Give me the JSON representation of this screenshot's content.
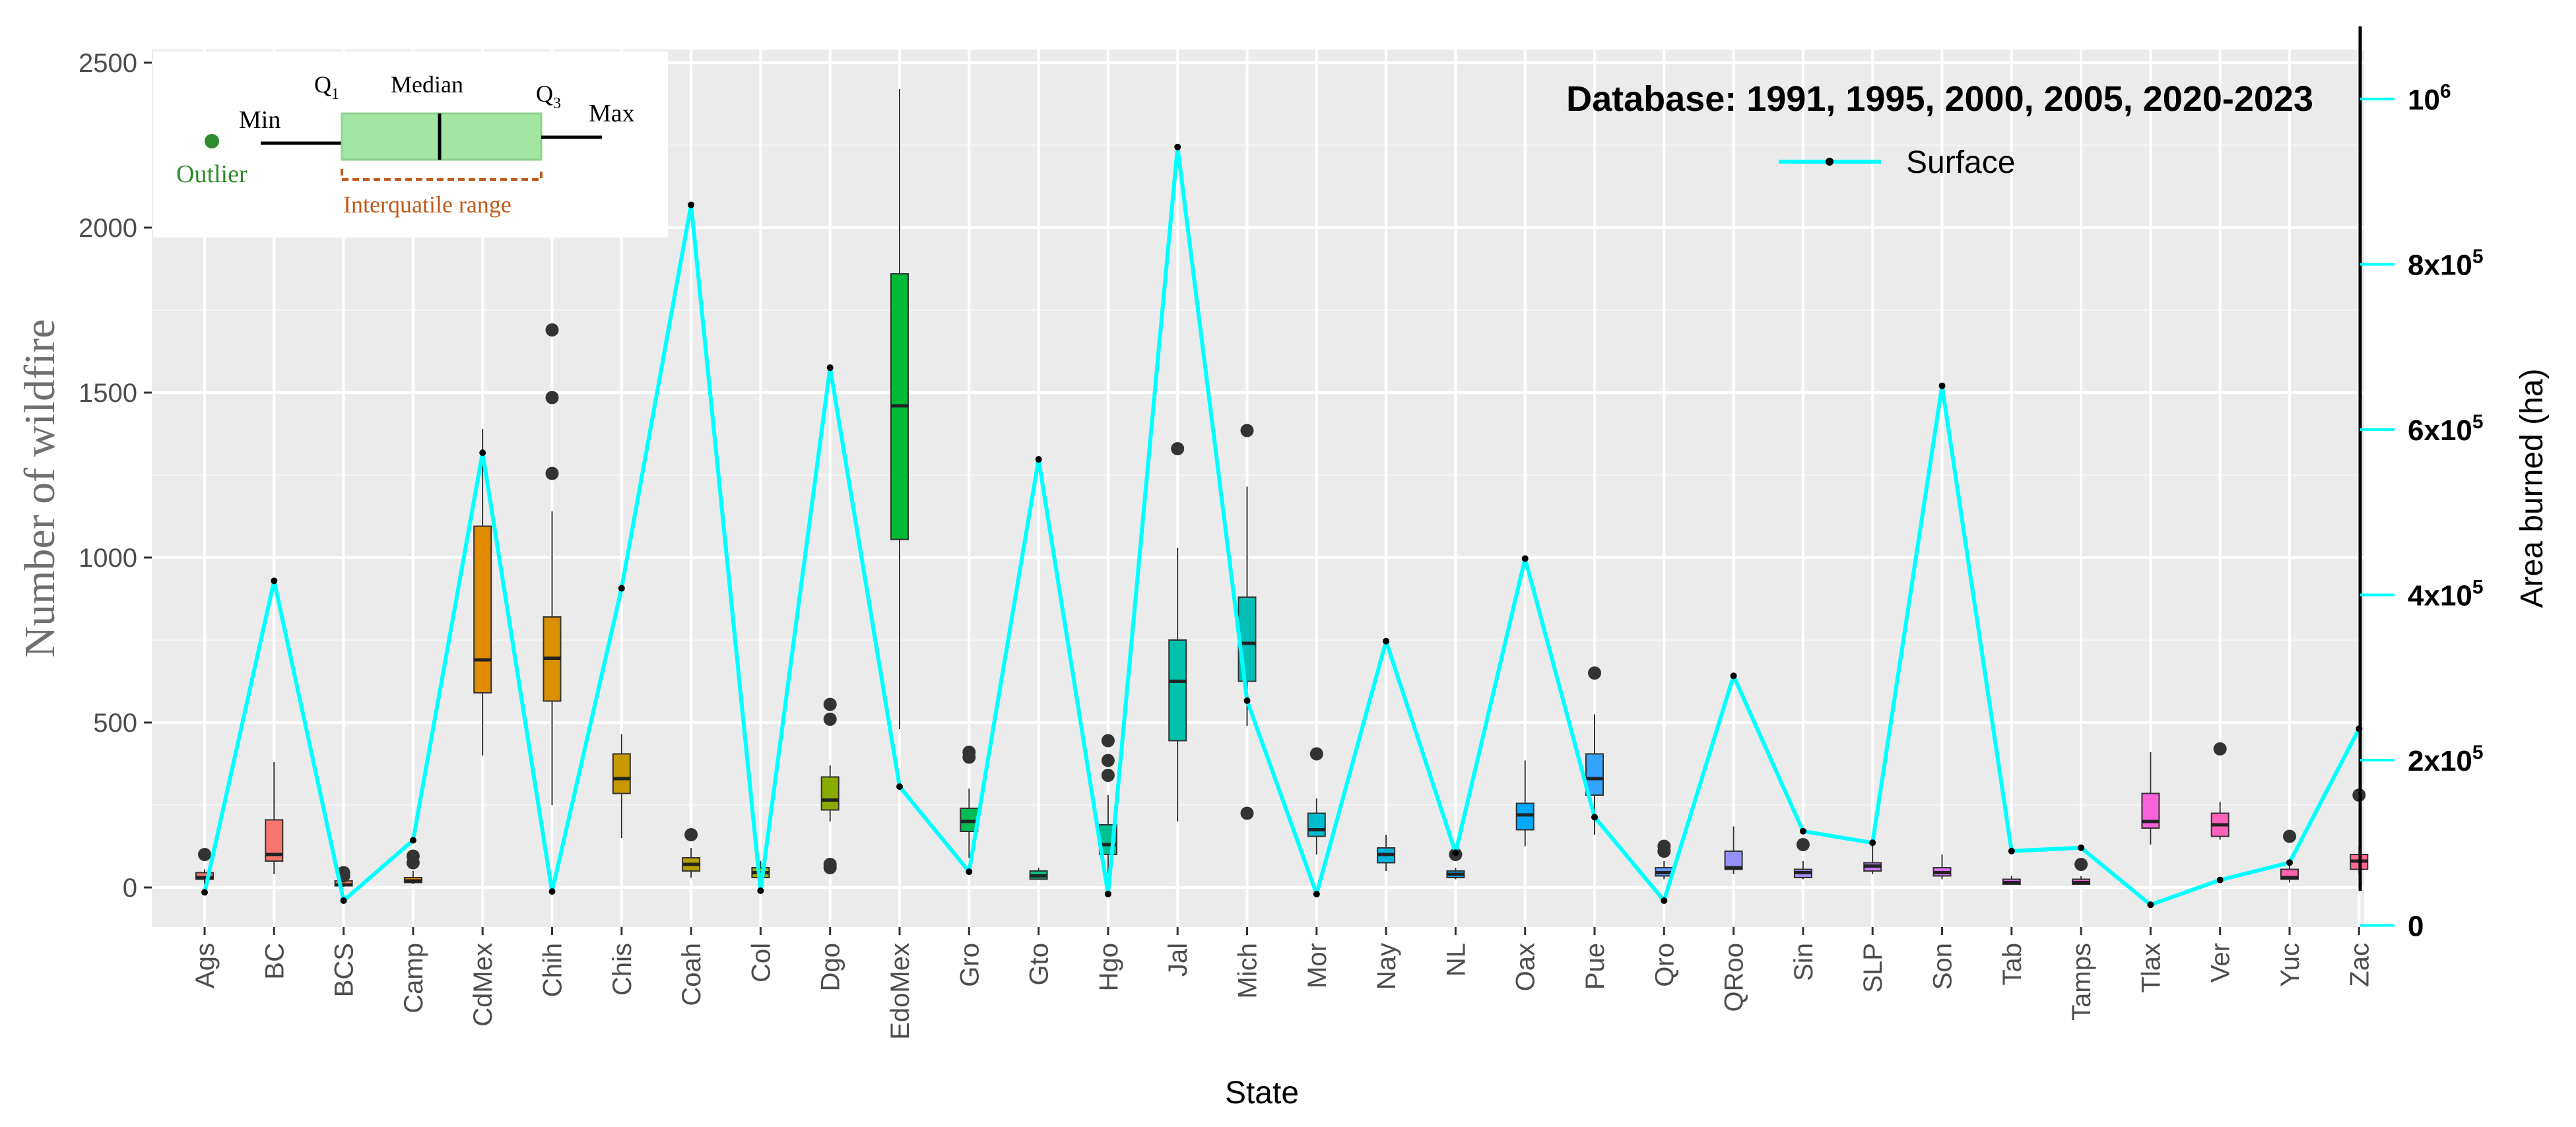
{
  "chart_data": {
    "type": "box",
    "title": "Database: 1991, 1995, 2000, 2005, 2020-2023",
    "xlabel": "State",
    "ylabel_left": "Number of wildfire",
    "ylabel_right": "Area burned (ha)",
    "ylim_left": [
      -120,
      2540
    ],
    "ylim_right": [
      -2000,
      1060000
    ],
    "yticks_left": [
      {
        "value": 0,
        "label": "0"
      },
      {
        "value": 500,
        "label": "500"
      },
      {
        "value": 1000,
        "label": "1000"
      },
      {
        "value": 1500,
        "label": "1500"
      },
      {
        "value": 2000,
        "label": "2000"
      },
      {
        "value": 2500,
        "label": "2500"
      }
    ],
    "yticks_right": [
      {
        "value": 0,
        "label": "0",
        "sup": ""
      },
      {
        "value": 200000,
        "label": "2x10",
        "sup": "5"
      },
      {
        "value": 400000,
        "label": "4x10",
        "sup": "5"
      },
      {
        "value": 600000,
        "label": "6x10",
        "sup": "5"
      },
      {
        "value": 800000,
        "label": "8x10",
        "sup": "5"
      },
      {
        "value": 1000000,
        "label": "10",
        "sup": "6"
      }
    ],
    "legend": {
      "label": "Surface",
      "position": "top-right",
      "color": "#00ffff"
    },
    "grid": true,
    "panel_color": "#ebebeb",
    "line_color": "#00ffff",
    "categories": [
      "Ags",
      "BC",
      "BCS",
      "Camp",
      "CdMex",
      "Chih",
      "Chis",
      "Coah",
      "Col",
      "Dgo",
      "EdoMex",
      "Gro",
      "Gto",
      "Hgo",
      "Jal",
      "Mich",
      "Mor",
      "Nay",
      "NL",
      "Oax",
      "Pue",
      "Qro",
      "QRoo",
      "Sin",
      "SLP",
      "Son",
      "Tab",
      "Tamps",
      "Tlax",
      "Ver",
      "Yuc",
      "Zac"
    ],
    "boxes": [
      {
        "state": "Ags",
        "min": 10,
        "q1": 25,
        "median": 30,
        "q3": 45,
        "max": 55,
        "outliers": [
          100
        ],
        "color": "#f8766d"
      },
      {
        "state": "BC",
        "min": 40,
        "q1": 80,
        "median": 100,
        "q3": 205,
        "max": 380,
        "outliers": [],
        "color": "#f8766d"
      },
      {
        "state": "BCS",
        "min": 2,
        "q1": 5,
        "median": 8,
        "q3": 20,
        "max": 30,
        "outliers": [
          35,
          45
        ],
        "color": "#f07a5a"
      },
      {
        "state": "Camp",
        "min": 10,
        "q1": 15,
        "median": 20,
        "q3": 30,
        "max": 50,
        "outliers": [
          75,
          95
        ],
        "color": "#e58700"
      },
      {
        "state": "CdMex",
        "min": 400,
        "q1": 590,
        "median": 690,
        "q3": 1095,
        "max": 1390,
        "outliers": [],
        "color": "#e08b00"
      },
      {
        "state": "Chih",
        "min": 250,
        "q1": 565,
        "median": 695,
        "q3": 820,
        "max": 1140,
        "outliers": [
          1255,
          1485,
          1690
        ],
        "color": "#d89000"
      },
      {
        "state": "Chis",
        "min": 150,
        "q1": 285,
        "median": 330,
        "q3": 405,
        "max": 465,
        "outliers": [],
        "color": "#c99800"
      },
      {
        "state": "Coah",
        "min": 30,
        "q1": 50,
        "median": 70,
        "q3": 90,
        "max": 120,
        "outliers": [
          160
        ],
        "color": "#b79f00"
      },
      {
        "state": "Col",
        "min": 20,
        "q1": 30,
        "median": 45,
        "q3": 60,
        "max": 80,
        "outliers": [],
        "color": "#a3a500"
      },
      {
        "state": "Dgo",
        "min": 200,
        "q1": 235,
        "median": 265,
        "q3": 335,
        "max": 370,
        "outliers": [
          60,
          70,
          510,
          555
        ],
        "color": "#8aab00"
      },
      {
        "state": "EdoMex",
        "min": 480,
        "q1": 1055,
        "median": 1460,
        "q3": 1860,
        "max": 2420,
        "outliers": [],
        "color": "#00ba38"
      },
      {
        "state": "Gro",
        "min": 90,
        "q1": 170,
        "median": 200,
        "q3": 240,
        "max": 300,
        "outliers": [
          395,
          410
        ],
        "color": "#00bc56"
      },
      {
        "state": "Gto",
        "min": 25,
        "q1": 25,
        "median": 35,
        "q3": 50,
        "max": 60,
        "outliers": [],
        "color": "#00bf7d"
      },
      {
        "state": "Hgo",
        "min": 40,
        "q1": 100,
        "median": 130,
        "q3": 190,
        "max": 280,
        "outliers": [
          340,
          385,
          445
        ],
        "color": "#00c094"
      },
      {
        "state": "Jal",
        "min": 200,
        "q1": 445,
        "median": 625,
        "q3": 750,
        "max": 1030,
        "outliers": [
          1330
        ],
        "color": "#00c1a9"
      },
      {
        "state": "Mich",
        "min": 490,
        "q1": 625,
        "median": 740,
        "q3": 880,
        "max": 1215,
        "outliers": [
          225,
          1385
        ],
        "color": "#00c0b8"
      },
      {
        "state": "Mor",
        "min": 100,
        "q1": 155,
        "median": 175,
        "q3": 225,
        "max": 270,
        "outliers": [
          405
        ],
        "color": "#00bcd0"
      },
      {
        "state": "Nay",
        "min": 50,
        "q1": 75,
        "median": 100,
        "q3": 120,
        "max": 160,
        "outliers": [],
        "color": "#00b6e0"
      },
      {
        "state": "NL",
        "min": 25,
        "q1": 30,
        "median": 40,
        "q3": 50,
        "max": 60,
        "outliers": [
          100
        ],
        "color": "#00b0f0"
      },
      {
        "state": "Oax",
        "min": 125,
        "q1": 175,
        "median": 220,
        "q3": 255,
        "max": 385,
        "outliers": [],
        "color": "#00a9ff"
      },
      {
        "state": "Pue",
        "min": 160,
        "q1": 280,
        "median": 330,
        "q3": 405,
        "max": 525,
        "outliers": [
          650
        ],
        "color": "#35a2ff"
      },
      {
        "state": "Qro",
        "min": 25,
        "q1": 35,
        "median": 45,
        "q3": 60,
        "max": 80,
        "outliers": [
          110,
          125
        ],
        "color": "#5f97ff"
      },
      {
        "state": "QRoo",
        "min": 40,
        "q1": 55,
        "median": 60,
        "q3": 110,
        "max": 185,
        "outliers": [],
        "color": "#9590ff"
      },
      {
        "state": "Sin",
        "min": 25,
        "q1": 30,
        "median": 45,
        "q3": 55,
        "max": 80,
        "outliers": [
          130
        ],
        "color": "#a58aff"
      },
      {
        "state": "SLP",
        "min": 40,
        "q1": 50,
        "median": 65,
        "q3": 75,
        "max": 130,
        "outliers": [],
        "color": "#c77cff"
      },
      {
        "state": "Son",
        "min": 25,
        "q1": 35,
        "median": 45,
        "q3": 60,
        "max": 100,
        "outliers": [],
        "color": "#d771ff"
      },
      {
        "state": "Tab",
        "min": 10,
        "q1": 10,
        "median": 15,
        "q3": 25,
        "max": 35,
        "outliers": [],
        "color": "#e76bf3"
      },
      {
        "state": "Tamps",
        "min": 8,
        "q1": 10,
        "median": 15,
        "q3": 25,
        "max": 35,
        "outliers": [
          70
        ],
        "color": "#f062d9"
      },
      {
        "state": "Tlax",
        "min": 130,
        "q1": 180,
        "median": 200,
        "q3": 285,
        "max": 410,
        "outliers": [],
        "color": "#fa62db"
      },
      {
        "state": "Ver",
        "min": 145,
        "q1": 155,
        "median": 190,
        "q3": 225,
        "max": 260,
        "outliers": [
          420
        ],
        "color": "#ff62bc"
      },
      {
        "state": "Yuc",
        "min": 15,
        "q1": 25,
        "median": 30,
        "q3": 55,
        "max": 80,
        "outliers": [
          155
        ],
        "color": "#ff65ac"
      },
      {
        "state": "Zac",
        "min": 40,
        "q1": 55,
        "median": 80,
        "q3": 100,
        "max": 125,
        "outliers": [
          280
        ],
        "color": "#ff6c91"
      }
    ],
    "surface_series": {
      "name": "Surface",
      "axis": "right",
      "values": [
        40000,
        417000,
        30000,
        103000,
        572000,
        41000,
        408000,
        872000,
        42000,
        675000,
        168000,
        65000,
        564000,
        38000,
        942000,
        272000,
        38000,
        344000,
        88000,
        444000,
        131000,
        30000,
        302000,
        114000,
        100000,
        653000,
        90000,
        94000,
        25000,
        55000,
        76000,
        238000
      ]
    }
  },
  "inset_legend": {
    "outlier": "Outlier",
    "min": "Min",
    "q1": "Q",
    "q1_sub": "1",
    "median": "Median",
    "q3": "Q",
    "q3_sub": "3",
    "max": "Max",
    "iqr": "Interquatile range"
  }
}
